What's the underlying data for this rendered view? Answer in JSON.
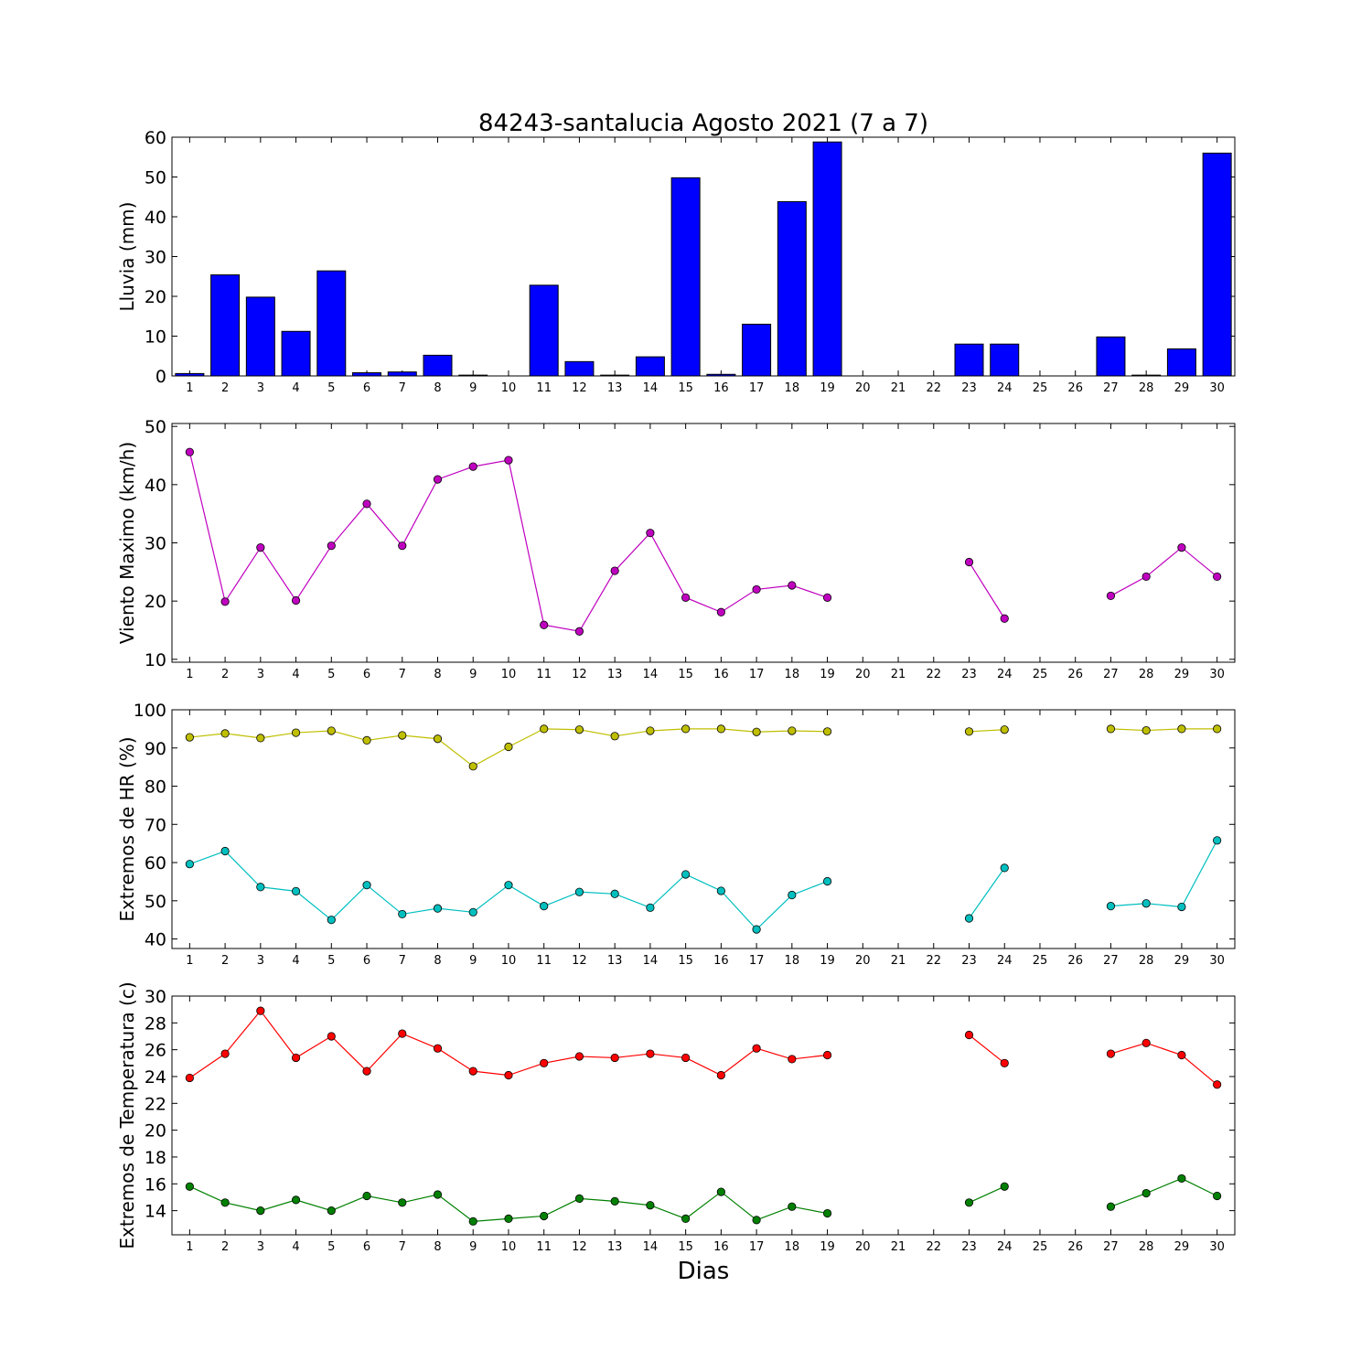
{
  "figure": {
    "title": "84243-santalucia Agosto 2021  (7 a 7)",
    "xlabel": "Dias"
  },
  "colors": {
    "bar": "#0000ff",
    "viento": "#bf00bf",
    "hr_max": "#bfbf00",
    "hr_min": "#00bfbf",
    "temp_max": "#ff0000",
    "temp_min": "#008000"
  },
  "chart_data": [
    {
      "type": "bar",
      "ylabel": "Lluvia (mm)",
      "ylim": [
        0,
        60
      ],
      "yticks": [
        0,
        10,
        20,
        30,
        40,
        50,
        60
      ],
      "categories": [
        "1",
        "2",
        "3",
        "4",
        "5",
        "6",
        "7",
        "8",
        "9",
        "10",
        "11",
        "12",
        "13",
        "14",
        "15",
        "16",
        "17",
        "18",
        "19",
        "20",
        "21",
        "22",
        "23",
        "24",
        "25",
        "26",
        "27",
        "28",
        "29",
        "30"
      ],
      "values": [
        0.6,
        25.4,
        19.8,
        11.2,
        26.4,
        0.8,
        1.0,
        5.2,
        0.2,
        0,
        22.8,
        3.6,
        0.2,
        4.8,
        49.8,
        0.4,
        13.0,
        43.8,
        58.8,
        0,
        0,
        0,
        8.0,
        8.0,
        0,
        0,
        9.8,
        0.2,
        6.8,
        56.0
      ]
    },
    {
      "type": "line",
      "ylabel": "Viento Maximo (km/h)",
      "ylim": [
        9.5,
        50.5
      ],
      "yticks": [
        10,
        20,
        30,
        40,
        50
      ],
      "x": [
        1,
        2,
        3,
        4,
        5,
        6,
        7,
        8,
        9,
        10,
        11,
        12,
        13,
        14,
        15,
        16,
        17,
        18,
        19,
        20,
        21,
        22,
        23,
        24,
        25,
        26,
        27,
        28,
        29,
        30
      ],
      "series": [
        {
          "color_key": "viento",
          "values": [
            45.6,
            19.9,
            29.2,
            20.1,
            29.5,
            36.7,
            29.5,
            40.9,
            43.1,
            44.2,
            15.9,
            14.8,
            25.2,
            31.7,
            20.6,
            18.1,
            22.0,
            22.7,
            20.6,
            null,
            null,
            null,
            26.7,
            17.0,
            null,
            null,
            20.9,
            24.2,
            29.2,
            24.2
          ]
        }
      ]
    },
    {
      "type": "line",
      "ylabel": "Extremos de HR (%)",
      "ylim": [
        37.5,
        100
      ],
      "yticks": [
        40,
        50,
        60,
        70,
        80,
        90,
        100
      ],
      "x": [
        1,
        2,
        3,
        4,
        5,
        6,
        7,
        8,
        9,
        10,
        11,
        12,
        13,
        14,
        15,
        16,
        17,
        18,
        19,
        20,
        21,
        22,
        23,
        24,
        25,
        26,
        27,
        28,
        29,
        30
      ],
      "series": [
        {
          "color_key": "hr_max",
          "values": [
            92.8,
            93.8,
            92.6,
            94.0,
            94.5,
            92.0,
            93.3,
            92.4,
            85.2,
            90.3,
            95.0,
            94.8,
            93.1,
            94.5,
            95.0,
            95.0,
            94.2,
            94.5,
            94.3,
            null,
            null,
            null,
            94.3,
            94.8,
            null,
            null,
            95.0,
            94.6,
            95.0,
            95.0
          ]
        },
        {
          "color_key": "hr_min",
          "values": [
            59.6,
            63.0,
            53.6,
            52.5,
            45.0,
            54.1,
            46.5,
            48.0,
            47.0,
            54.1,
            48.6,
            52.3,
            51.8,
            48.2,
            56.9,
            52.6,
            42.5,
            51.5,
            55.1,
            null,
            null,
            null,
            45.4,
            58.6,
            null,
            null,
            48.6,
            49.3,
            48.4,
            65.8
          ]
        }
      ]
    },
    {
      "type": "line",
      "ylabel": "Extremos de Temperatura (c)",
      "ylim": [
        12.2,
        30
      ],
      "yticks": [
        14,
        16,
        18,
        20,
        22,
        24,
        26,
        28,
        30
      ],
      "x": [
        1,
        2,
        3,
        4,
        5,
        6,
        7,
        8,
        9,
        10,
        11,
        12,
        13,
        14,
        15,
        16,
        17,
        18,
        19,
        20,
        21,
        22,
        23,
        24,
        25,
        26,
        27,
        28,
        29,
        30
      ],
      "series": [
        {
          "color_key": "temp_max",
          "values": [
            23.9,
            25.7,
            28.9,
            25.4,
            27.0,
            24.4,
            27.2,
            26.1,
            24.4,
            24.1,
            25.0,
            25.5,
            25.4,
            25.7,
            25.4,
            24.1,
            26.1,
            25.3,
            25.6,
            null,
            null,
            null,
            27.1,
            25.0,
            null,
            null,
            25.7,
            26.5,
            25.6,
            23.4
          ]
        },
        {
          "color_key": "temp_min",
          "values": [
            15.8,
            14.6,
            14.0,
            14.8,
            14.0,
            15.1,
            14.6,
            15.2,
            13.2,
            13.4,
            13.6,
            14.9,
            14.7,
            14.4,
            13.4,
            15.4,
            13.3,
            14.3,
            13.8,
            null,
            null,
            null,
            14.6,
            15.8,
            null,
            null,
            14.3,
            15.3,
            16.4,
            15.1
          ]
        }
      ]
    }
  ]
}
